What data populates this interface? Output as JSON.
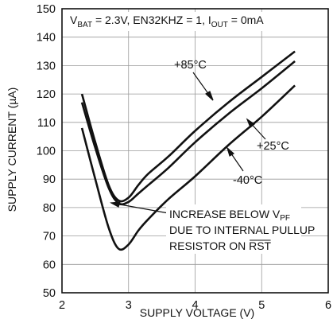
{
  "chart_data": {
    "type": "line",
    "title": "",
    "conditions": {
      "vbat_part": "V",
      "vbat_sub": "BAT",
      "vbat_val": " = 2.3V, EN32KHZ = 1, I",
      "iout_sub": "OUT",
      "iout_val": " = 0mA"
    },
    "xlabel": "SUPPLY VOLTAGE (V)",
    "ylabel": "SUPPLY CURRENT (µA)",
    "xlim": [
      2,
      6
    ],
    "ylim": [
      50,
      150
    ],
    "xticks": [
      2,
      3,
      4,
      5,
      6
    ],
    "yticks": [
      50,
      60,
      70,
      80,
      90,
      100,
      110,
      120,
      130,
      140,
      150
    ],
    "grid": true,
    "series": [
      {
        "name": "+85°C",
        "points": [
          [
            2.3,
            120
          ],
          [
            2.5,
            103
          ],
          [
            2.7,
            88
          ],
          [
            2.85,
            82.5
          ],
          [
            3.0,
            83.5
          ],
          [
            3.15,
            88
          ],
          [
            3.3,
            92
          ],
          [
            3.6,
            98
          ],
          [
            4.0,
            107
          ],
          [
            4.5,
            117
          ],
          [
            5.0,
            126
          ],
          [
            5.5,
            135
          ]
        ]
      },
      {
        "name": "+25°C",
        "points": [
          [
            2.3,
            117
          ],
          [
            2.5,
            101
          ],
          [
            2.7,
            87
          ],
          [
            2.85,
            81.5
          ],
          [
            3.0,
            82
          ],
          [
            3.15,
            85
          ],
          [
            3.3,
            88
          ],
          [
            3.6,
            94
          ],
          [
            4.0,
            103
          ],
          [
            4.5,
            113
          ],
          [
            5.0,
            122
          ],
          [
            5.5,
            131.5
          ]
        ]
      },
      {
        "name": "-40°C",
        "points": [
          [
            2.3,
            108
          ],
          [
            2.5,
            90
          ],
          [
            2.7,
            73
          ],
          [
            2.85,
            65.5
          ],
          [
            3.0,
            67
          ],
          [
            3.15,
            72
          ],
          [
            3.3,
            76
          ],
          [
            3.6,
            83
          ],
          [
            4.0,
            91
          ],
          [
            4.5,
            102
          ],
          [
            5.0,
            112
          ],
          [
            5.5,
            123
          ]
        ]
      }
    ],
    "annotation": {
      "line1": "INCREASE BELOW V",
      "line1_sub": "PF",
      "line2": "DUE TO INTERNAL PULLUP",
      "line3": "RESISTOR ON ",
      "line3_overlined": "RST"
    }
  }
}
